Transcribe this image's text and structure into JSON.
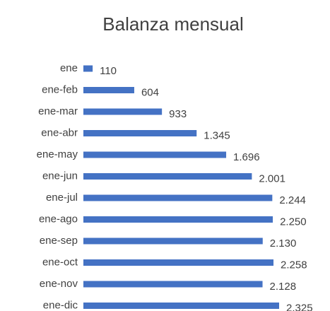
{
  "chart_data": {
    "type": "bar",
    "orientation": "horizontal",
    "title": "Balanza mensual",
    "categories": [
      "ene",
      "ene-feb",
      "ene-mar",
      "ene-abr",
      "ene-may",
      "ene-jun",
      "ene-jul",
      "ene-ago",
      "ene-sep",
      "ene-oct",
      "ene-nov",
      "ene-dic"
    ],
    "values": [
      110,
      604,
      933,
      1345,
      1696,
      2001,
      2244,
      2250,
      2130,
      2258,
      2128,
      2325
    ],
    "value_labels": [
      "110",
      "604",
      "933",
      "1.345",
      "1.696",
      "2.001",
      "2.244",
      "2.250",
      "2.130",
      "2.258",
      "2.128",
      "2.325"
    ],
    "color": "#4472c4"
  }
}
